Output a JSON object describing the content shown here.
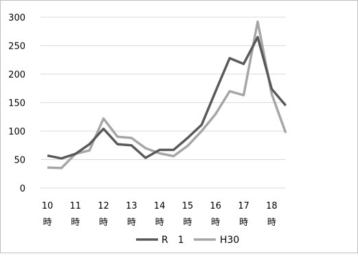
{
  "chart_data": {
    "type": "line",
    "categories": [
      "10時",
      "",
      "11時",
      "",
      "12時",
      "",
      "13時",
      "",
      "14時",
      "",
      "15時",
      "",
      "16時",
      "",
      "17時",
      "",
      "18時",
      ""
    ],
    "x_tick_labels": [
      {
        "num": "10",
        "unit": "時"
      },
      {
        "num": "11",
        "unit": "時"
      },
      {
        "num": "12",
        "unit": "時"
      },
      {
        "num": "13",
        "unit": "時"
      },
      {
        "num": "14",
        "unit": "時"
      },
      {
        "num": "15",
        "unit": "時"
      },
      {
        "num": "16",
        "unit": "時"
      },
      {
        "num": "17",
        "unit": "時"
      },
      {
        "num": "18",
        "unit": "時"
      }
    ],
    "yticks": [
      "0",
      "50",
      "100",
      "150",
      "200",
      "250",
      "300"
    ],
    "ylim": [
      0,
      300
    ],
    "grid": true,
    "legend_position": "bottom",
    "series": [
      {
        "name": "R　1",
        "color": "#595959",
        "values": [
          57,
          52,
          60,
          77,
          104,
          77,
          75,
          53,
          67,
          67,
          88,
          111,
          170,
          228,
          218,
          265,
          174,
          145
        ]
      },
      {
        "name": "H30",
        "color": "#a6a6a6",
        "values": [
          36,
          35,
          60,
          66,
          122,
          90,
          88,
          70,
          61,
          56,
          74,
          100,
          130,
          170,
          163,
          292,
          165,
          97
        ]
      }
    ]
  }
}
